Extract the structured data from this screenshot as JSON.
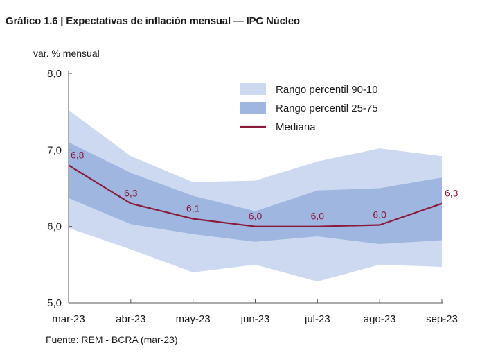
{
  "title": "Gráfico 1.6 | Expectativas de inflación mensual — IPC Núcleo",
  "source": "Fuente: REM - BCRA (mar-23)",
  "colors": {
    "band_outer": "#ccd9f0",
    "band_inner": "#9fb6e0",
    "median": "#8b1a3a",
    "axis": "#555555"
  },
  "chart_data": {
    "type": "area",
    "ylabel": "var. % mensual",
    "xlabel": "",
    "categories": [
      "mar-23",
      "abr-23",
      "may-23",
      "jun-23",
      "jul-23",
      "ago-23",
      "sep-23"
    ],
    "ylim": [
      5.0,
      8.0
    ],
    "yticks": [
      5.0,
      6.0,
      7.0,
      8.0
    ],
    "ytick_labels": [
      "5,0",
      "6,0",
      "7,0",
      "8,0"
    ],
    "grid": false,
    "legend_position": "top-right",
    "series": [
      {
        "name": "Rango percentil 90-10",
        "kind": "band",
        "low": [
          5.98,
          5.7,
          5.4,
          5.5,
          5.28,
          5.5,
          5.47
        ],
        "high": [
          7.52,
          6.92,
          6.58,
          6.6,
          6.85,
          7.02,
          6.92
        ]
      },
      {
        "name": "Rango percentil 25-75",
        "kind": "band",
        "low": [
          6.37,
          6.03,
          5.9,
          5.8,
          5.87,
          5.77,
          5.82
        ],
        "high": [
          7.1,
          6.7,
          6.4,
          6.2,
          6.47,
          6.5,
          6.64
        ]
      },
      {
        "name": "Mediana",
        "kind": "line",
        "values": [
          6.8,
          6.3,
          6.1,
          6.0,
          6.0,
          6.02,
          6.3
        ]
      }
    ],
    "data_labels": [
      "6,8",
      "6,3",
      "6,1",
      "6,0",
      "6,0",
      "6,0",
      "6,3"
    ]
  }
}
